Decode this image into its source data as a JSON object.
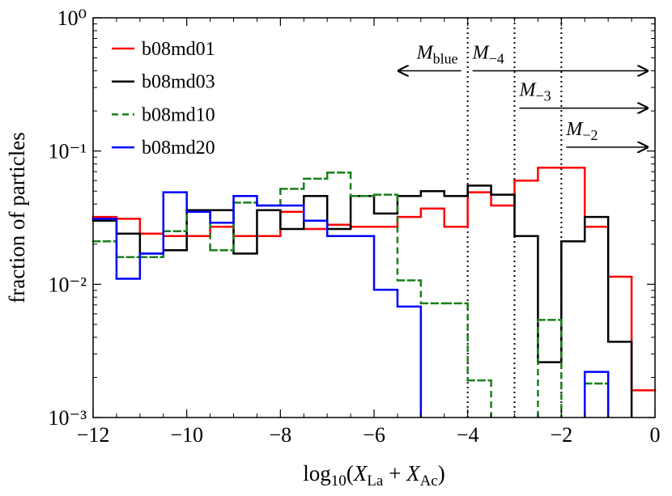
{
  "chart_data": {
    "type": "step-histogram",
    "ylabel": "fraction of particles",
    "xlabel": [
      {
        "text": "log",
        "style": "normal"
      },
      {
        "text": "10",
        "style": "sub"
      },
      {
        "text": "(",
        "style": "normal"
      },
      {
        "text": "X",
        "style": "italic"
      },
      {
        "text": "La",
        "style": "sub"
      },
      {
        "text": " + ",
        "style": "normal"
      },
      {
        "text": "X",
        "style": "italic"
      },
      {
        "text": "Ac",
        "style": "sub"
      },
      {
        "text": ")",
        "style": "normal"
      }
    ],
    "bins": [
      -12,
      -11.5,
      -11,
      -10.5,
      -10,
      -9.5,
      -9,
      -8.5,
      -8,
      -7.5,
      -7,
      -6.5,
      -6,
      -5.5,
      -5,
      -4.5,
      -4,
      -3.5,
      -3,
      -2.5,
      -2,
      -1.5,
      -1,
      -0.5,
      0
    ],
    "xlim": [
      -12,
      0
    ],
    "xticks": [
      {
        "value": -12,
        "label": "−12"
      },
      {
        "value": -10,
        "label": "−10"
      },
      {
        "value": -8,
        "label": "−8"
      },
      {
        "value": -6,
        "label": "−6"
      },
      {
        "value": -4,
        "label": "−4"
      },
      {
        "value": -2,
        "label": "−2"
      },
      0
    ],
    "ylim": [
      0.001,
      1
    ],
    "yscale": "log",
    "yticks": [
      {
        "value": 0.001,
        "label": "10⁻³"
      },
      {
        "value": 0.01,
        "label": "10⁻²"
      },
      {
        "value": 0.1,
        "label": "10⁻¹"
      },
      {
        "value": 1,
        "label": "10⁰"
      }
    ],
    "legend": "upper left",
    "series": [
      {
        "name": "b08md01",
        "color": "#ff0000",
        "linestyle": "solid",
        "values": [
          0.032,
          0.031,
          0.024,
          0.023,
          0.023,
          0.027,
          0.023,
          0.023,
          0.035,
          0.026,
          0.028,
          0.027,
          0.027,
          0.032,
          0.037,
          0.027,
          0.049,
          0.039,
          0.06,
          0.075,
          0.075,
          0.027,
          0.0114,
          0.0016
        ]
      },
      {
        "name": "b08md03",
        "color": "#000000",
        "linestyle": "solid",
        "values": [
          0.03,
          0.024,
          0.017,
          0.018,
          0.036,
          0.036,
          0.017,
          0.036,
          0.026,
          0.046,
          0.026,
          0.046,
          0.034,
          0.046,
          0.05,
          0.046,
          0.055,
          0.047,
          0.023,
          0.0026,
          0.021,
          0.032,
          0.0037,
          null
        ]
      },
      {
        "name": "b08md10",
        "color": "#1a7f1a",
        "linestyle": "dashed",
        "values": [
          0.021,
          0.016,
          0.016,
          0.025,
          0.035,
          0.018,
          0.041,
          0.039,
          0.052,
          0.062,
          0.069,
          0.046,
          0.047,
          0.0107,
          0.0072,
          0.0072,
          0.0019,
          null,
          null,
          0.0054,
          null,
          0.0018,
          null,
          null
        ]
      },
      {
        "name": "b08md20",
        "color": "#0000ff",
        "linestyle": "solid",
        "values": [
          0.031,
          0.011,
          0.017,
          0.049,
          0.035,
          0.029,
          0.046,
          0.039,
          0.039,
          0.03,
          0.023,
          0.023,
          0.0091,
          0.0068,
          null,
          null,
          null,
          null,
          null,
          null,
          null,
          0.0022,
          null,
          null
        ]
      }
    ],
    "vlines": [
      -4,
      -3,
      -2
    ],
    "annotations": [
      {
        "text": "M",
        "sub": "blue",
        "x_from": -4,
        "x_to": -5.5,
        "y": 0.4
      },
      {
        "text": "M",
        "sub": "−4",
        "x_from": -4,
        "x_to": 0,
        "y": 0.4
      },
      {
        "text": "M",
        "sub": "−3",
        "x_from": -3,
        "x_to": 0,
        "y": 0.21
      },
      {
        "text": "M",
        "sub": "−2",
        "x_from": -2,
        "x_to": 0,
        "y": 0.107
      }
    ]
  }
}
